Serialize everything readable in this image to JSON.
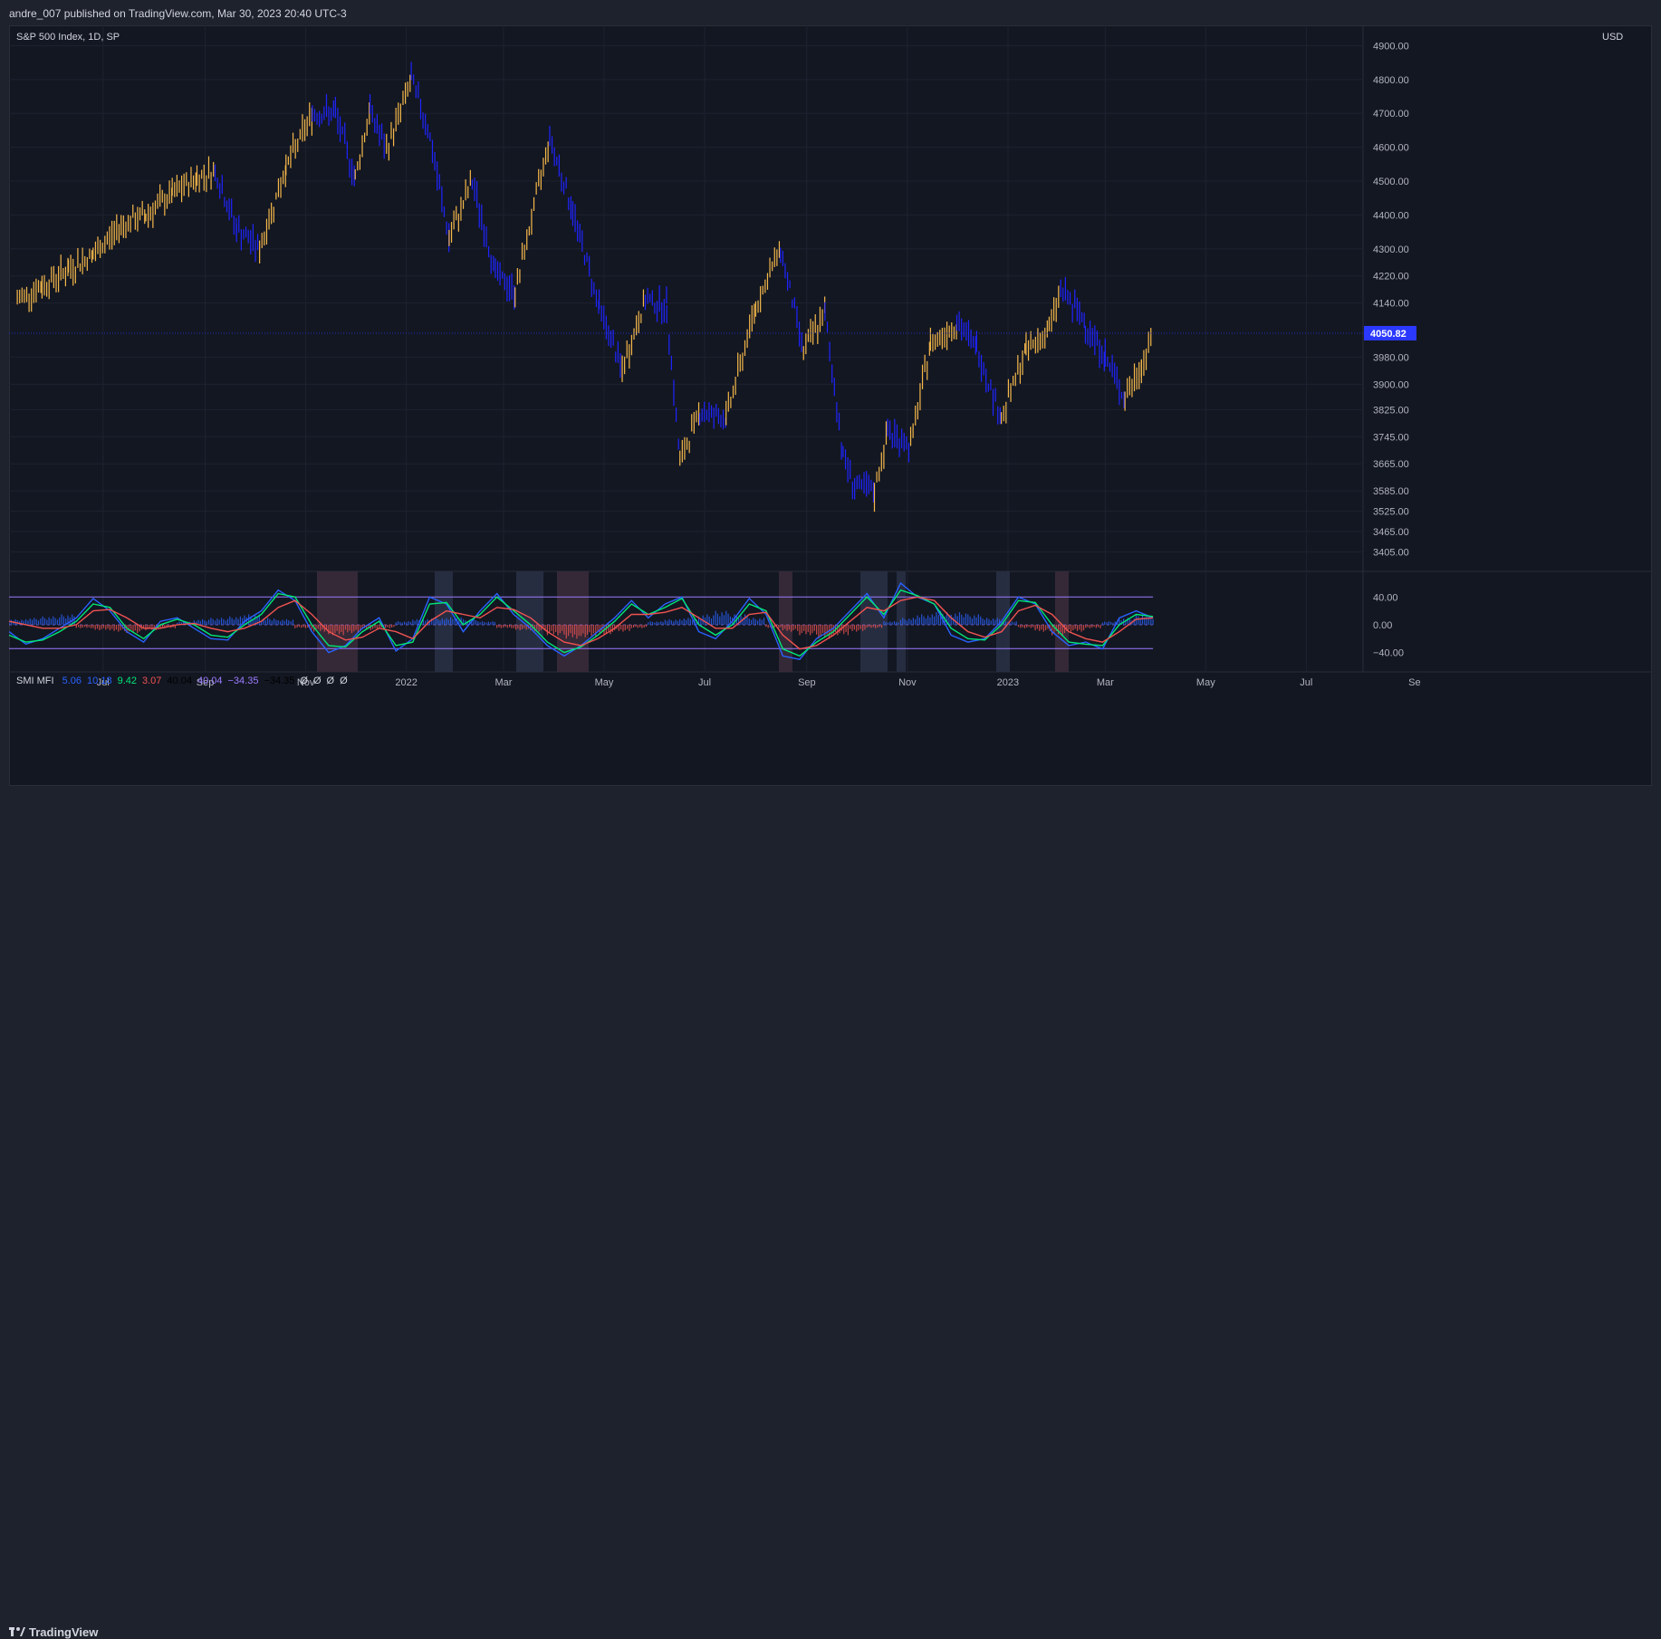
{
  "header": {
    "publisher_text": "andre_007 published on TradingView.com, Mar 30, 2023 20:40 UTC-3"
  },
  "footer": {
    "logo_text": "TradingView"
  },
  "chart_data": [
    {
      "type": "line",
      "title": "S&P 500 Index, 1D, SP",
      "currency": "USD",
      "last_price": 4050.82,
      "last_price_label": "4050.82",
      "ylim": [
        3350,
        4960
      ],
      "y_tick_labels": [
        "4900.00",
        "4800.00",
        "4700.00",
        "4600.00",
        "4500.00",
        "4400.00",
        "4300.00",
        "4220.00",
        "4140.00",
        "3980.00",
        "3900.00",
        "3825.00",
        "3745.00",
        "3665.00",
        "3585.00",
        "3525.00",
        "3465.00",
        "3405.00"
      ],
      "x_tick_labels": [
        "Jul",
        "Sep",
        "Nov",
        "2022",
        "Mar",
        "May",
        "Jul",
        "Sep",
        "Nov",
        "2023",
        "Mar",
        "May",
        "Jul",
        "Se"
      ],
      "colors": {
        "down": "#1f24ff",
        "mid": "#27b3c9",
        "up": "#3ee07a",
        "high": "#f2f24a",
        "extreme": "#f6b94a",
        "background": "#131722",
        "last_price": "#2b39ff"
      },
      "series": [
        {
          "x": [
            "2021-05-10",
            "2021-05-25",
            "2021-06-10",
            "2021-06-25",
            "2021-07-12",
            "2021-07-27",
            "2021-08-12",
            "2021-08-27",
            "2021-09-07",
            "2021-09-20",
            "2021-10-04",
            "2021-10-20",
            "2021-11-05",
            "2021-11-19",
            "2021-12-01",
            "2021-12-10",
            "2021-12-20",
            "2022-01-04",
            "2022-01-14",
            "2022-01-27",
            "2022-02-10",
            "2022-02-24",
            "2022-03-08",
            "2022-03-29",
            "2022-04-12",
            "2022-04-28",
            "2022-05-12",
            "2022-05-26",
            "2022-06-08",
            "2022-06-16",
            "2022-06-28",
            "2022-07-14",
            "2022-08-01",
            "2022-08-16",
            "2022-08-30",
            "2022-09-12",
            "2022-09-23",
            "2022-09-30",
            "2022-10-12",
            "2022-10-20",
            "2022-11-03",
            "2022-11-15",
            "2022-12-01",
            "2022-12-13",
            "2022-12-28",
            "2023-01-12",
            "2023-01-26",
            "2023-02-02",
            "2023-02-17",
            "2023-03-01",
            "2023-03-13",
            "2023-03-23",
            "2023-03-30"
          ],
          "values": [
            4150,
            4190,
            4240,
            4280,
            4370,
            4400,
            4460,
            4510,
            4530,
            4360,
            4300,
            4540,
            4700,
            4700,
            4510,
            4710,
            4590,
            4800,
            4660,
            4330,
            4500,
            4230,
            4170,
            4630,
            4410,
            4130,
            3940,
            4150,
            4130,
            3670,
            3820,
            3800,
            4130,
            4300,
            4000,
            4110,
            3690,
            3600,
            3580,
            3760,
            3720,
            4020,
            4080,
            4010,
            3800,
            4000,
            4060,
            4180,
            4080,
            3980,
            3860,
            3950,
            4050
          ]
        }
      ]
    },
    {
      "type": "line",
      "title": "SMI MFI",
      "legend_values": [
        {
          "text": "5.06",
          "color": "#2962ff"
        },
        {
          "text": "10.18",
          "color": "#2962ff"
        },
        {
          "text": "9.42",
          "color": "#00e676"
        },
        {
          "text": "3.07",
          "color": "#ef5350"
        },
        {
          "text": "40.04",
          "color": "#000000"
        },
        {
          "text": "40.04",
          "color": "#9c7cff"
        },
        {
          "text": "−34.35",
          "color": "#9c7cff"
        },
        {
          "text": "−34.35",
          "color": "#000000"
        },
        {
          "text": "Ø",
          "color": "#d1d4dc"
        },
        {
          "text": "Ø",
          "color": "#d1d4dc"
        },
        {
          "text": "Ø",
          "color": "#d1d4dc"
        },
        {
          "text": "Ø",
          "color": "#d1d4dc"
        }
      ],
      "ylim": [
        -68,
        77
      ],
      "y_tick_labels": [
        "40.00",
        "0.00",
        "−40.00"
      ],
      "y_ticks": [
        40,
        0,
        -40
      ],
      "upper_band": 40.04,
      "lower_band": -34.35,
      "series": [
        {
          "name": "5.06",
          "color": "#2962ff",
          "values": [
            -10,
            -28,
            -20,
            -5,
            10,
            38,
            20,
            -10,
            -25,
            5,
            10,
            -5,
            -20,
            -22,
            5,
            20,
            50,
            35,
            -10,
            -40,
            -30,
            -5,
            10,
            -38,
            -20,
            40,
            30,
            -10,
            20,
            45,
            15,
            -5,
            -30,
            -45,
            -30,
            -10,
            10,
            35,
            10,
            30,
            40,
            -10,
            -20,
            5,
            38,
            15,
            -45,
            -50,
            -20,
            -5,
            20,
            45,
            10,
            60,
            40,
            30,
            -15,
            -25,
            -20,
            5,
            40,
            30,
            -10,
            -30,
            -25,
            -35,
            10,
            20,
            10
          ]
        },
        {
          "name": "9.42",
          "color": "#00e676",
          "values": [
            -15,
            -25,
            -22,
            -10,
            5,
            30,
            25,
            -5,
            -20,
            0,
            8,
            0,
            -15,
            -18,
            0,
            15,
            45,
            40,
            0,
            -30,
            -32,
            -10,
            5,
            -30,
            -25,
            30,
            32,
            0,
            15,
            40,
            20,
            0,
            -25,
            -40,
            -32,
            -15,
            5,
            30,
            15,
            25,
            38,
            0,
            -15,
            0,
            30,
            20,
            -35,
            -45,
            -25,
            -10,
            15,
            40,
            15,
            50,
            42,
            30,
            -5,
            -20,
            -22,
            0,
            35,
            32,
            0,
            -25,
            -28,
            -30,
            0,
            15,
            12
          ]
        },
        {
          "name": "3.07",
          "color": "#ef5350",
          "values": [
            5,
            0,
            -5,
            -5,
            0,
            20,
            22,
            10,
            -5,
            -5,
            0,
            2,
            -5,
            -10,
            -5,
            5,
            25,
            35,
            15,
            -10,
            -22,
            -18,
            -5,
            -10,
            -20,
            5,
            20,
            15,
            10,
            25,
            22,
            10,
            -10,
            -25,
            -30,
            -20,
            -5,
            15,
            15,
            18,
            25,
            10,
            -5,
            -5,
            15,
            18,
            -15,
            -35,
            -30,
            -15,
            5,
            25,
            20,
            35,
            40,
            35,
            10,
            -10,
            -18,
            -10,
            20,
            28,
            15,
            -10,
            -20,
            -25,
            -10,
            8,
            10
          ]
        }
      ],
      "histogram": [
        8,
        10,
        12,
        15,
        -5,
        -8,
        -10,
        -12,
        -8,
        -5,
        5,
        8,
        10,
        12,
        15,
        10,
        8,
        -5,
        -10,
        -15,
        -12,
        -8,
        -5,
        5,
        8,
        10,
        12,
        8,
        5,
        -5,
        -8,
        -10,
        -15,
        -20,
        -18,
        -15,
        -10,
        -5,
        5,
        8,
        10,
        15,
        20,
        15,
        10,
        -5,
        -10,
        -15,
        -20,
        -15,
        -10,
        -5,
        5,
        10,
        15,
        20,
        18,
        15,
        10,
        5,
        -5,
        -10,
        -15,
        -10,
        -5,
        5,
        10,
        15,
        12
      ]
    }
  ]
}
